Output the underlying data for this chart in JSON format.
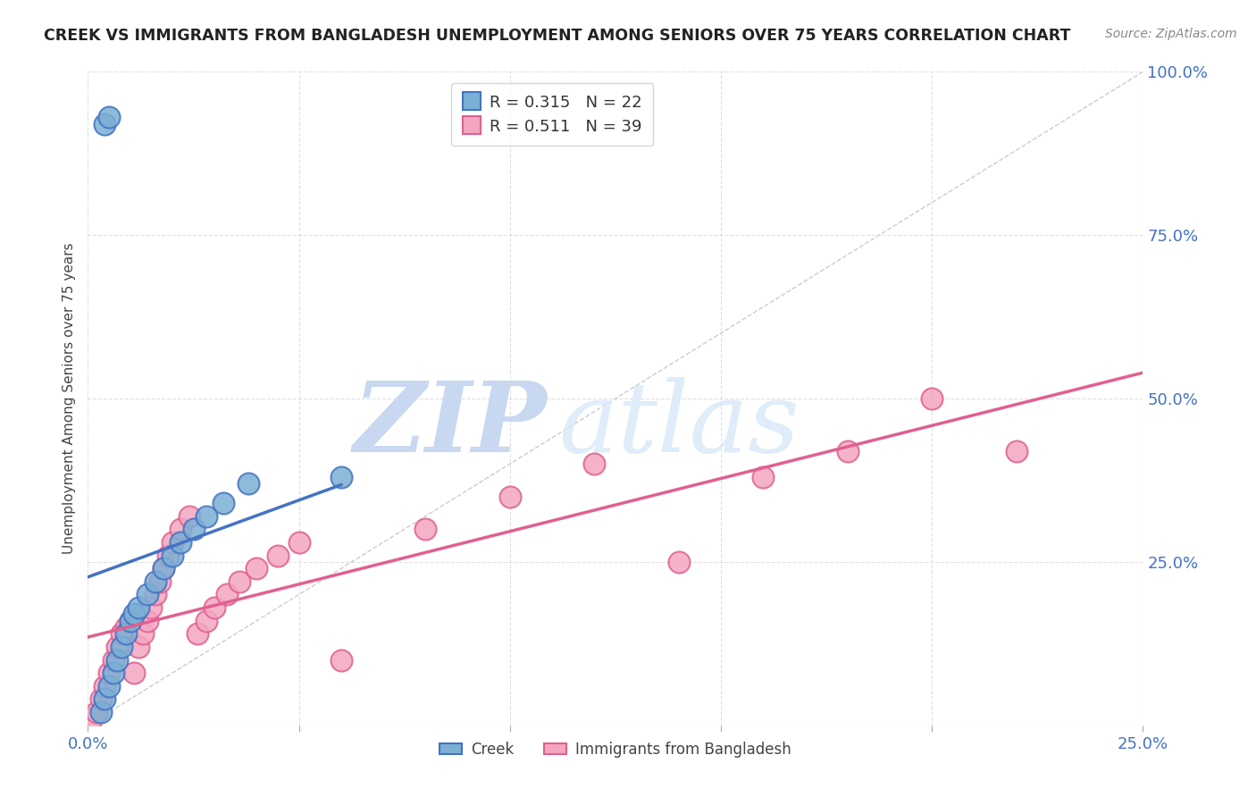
{
  "title": "CREEK VS IMMIGRANTS FROM BANGLADESH UNEMPLOYMENT AMONG SENIORS OVER 75 YEARS CORRELATION CHART",
  "source": "Source: ZipAtlas.com",
  "ylabel": "Unemployment Among Seniors over 75 years",
  "xlim": [
    0.0,
    0.25
  ],
  "ylim": [
    0.0,
    1.0
  ],
  "creek_color": "#7BAFD4",
  "creek_line_color": "#4472C4",
  "bangladesh_color": "#F4A6C0",
  "bangladesh_line_color": "#E06090",
  "creek_R": 0.315,
  "creek_N": 22,
  "bangladesh_R": 0.511,
  "bangladesh_N": 39,
  "background_color": "#FFFFFF",
  "grid_color": "#CCCCCC",
  "ytick_color": "#4472C4",
  "xtick_color": "#4472C4",
  "creek_x": [
    0.003,
    0.004,
    0.005,
    0.006,
    0.007,
    0.008,
    0.009,
    0.01,
    0.011,
    0.012,
    0.014,
    0.016,
    0.018,
    0.02,
    0.022,
    0.025,
    0.028,
    0.032,
    0.038,
    0.06,
    0.004,
    0.005
  ],
  "creek_y": [
    0.02,
    0.04,
    0.06,
    0.08,
    0.1,
    0.12,
    0.14,
    0.16,
    0.17,
    0.18,
    0.2,
    0.22,
    0.24,
    0.26,
    0.28,
    0.3,
    0.32,
    0.34,
    0.37,
    0.38,
    0.92,
    0.93
  ],
  "bangladesh_x": [
    0.001,
    0.002,
    0.003,
    0.004,
    0.005,
    0.006,
    0.007,
    0.008,
    0.009,
    0.01,
    0.011,
    0.012,
    0.013,
    0.014,
    0.015,
    0.016,
    0.017,
    0.018,
    0.019,
    0.02,
    0.022,
    0.024,
    0.026,
    0.028,
    0.03,
    0.033,
    0.036,
    0.04,
    0.045,
    0.05,
    0.06,
    0.08,
    0.1,
    0.12,
    0.14,
    0.16,
    0.18,
    0.2,
    0.22
  ],
  "bangladesh_y": [
    0.01,
    0.02,
    0.04,
    0.06,
    0.08,
    0.1,
    0.12,
    0.14,
    0.15,
    0.16,
    0.08,
    0.12,
    0.14,
    0.16,
    0.18,
    0.2,
    0.22,
    0.24,
    0.26,
    0.28,
    0.3,
    0.32,
    0.14,
    0.16,
    0.18,
    0.2,
    0.22,
    0.24,
    0.26,
    0.28,
    0.1,
    0.3,
    0.35,
    0.4,
    0.25,
    0.38,
    0.42,
    0.5,
    0.42
  ]
}
